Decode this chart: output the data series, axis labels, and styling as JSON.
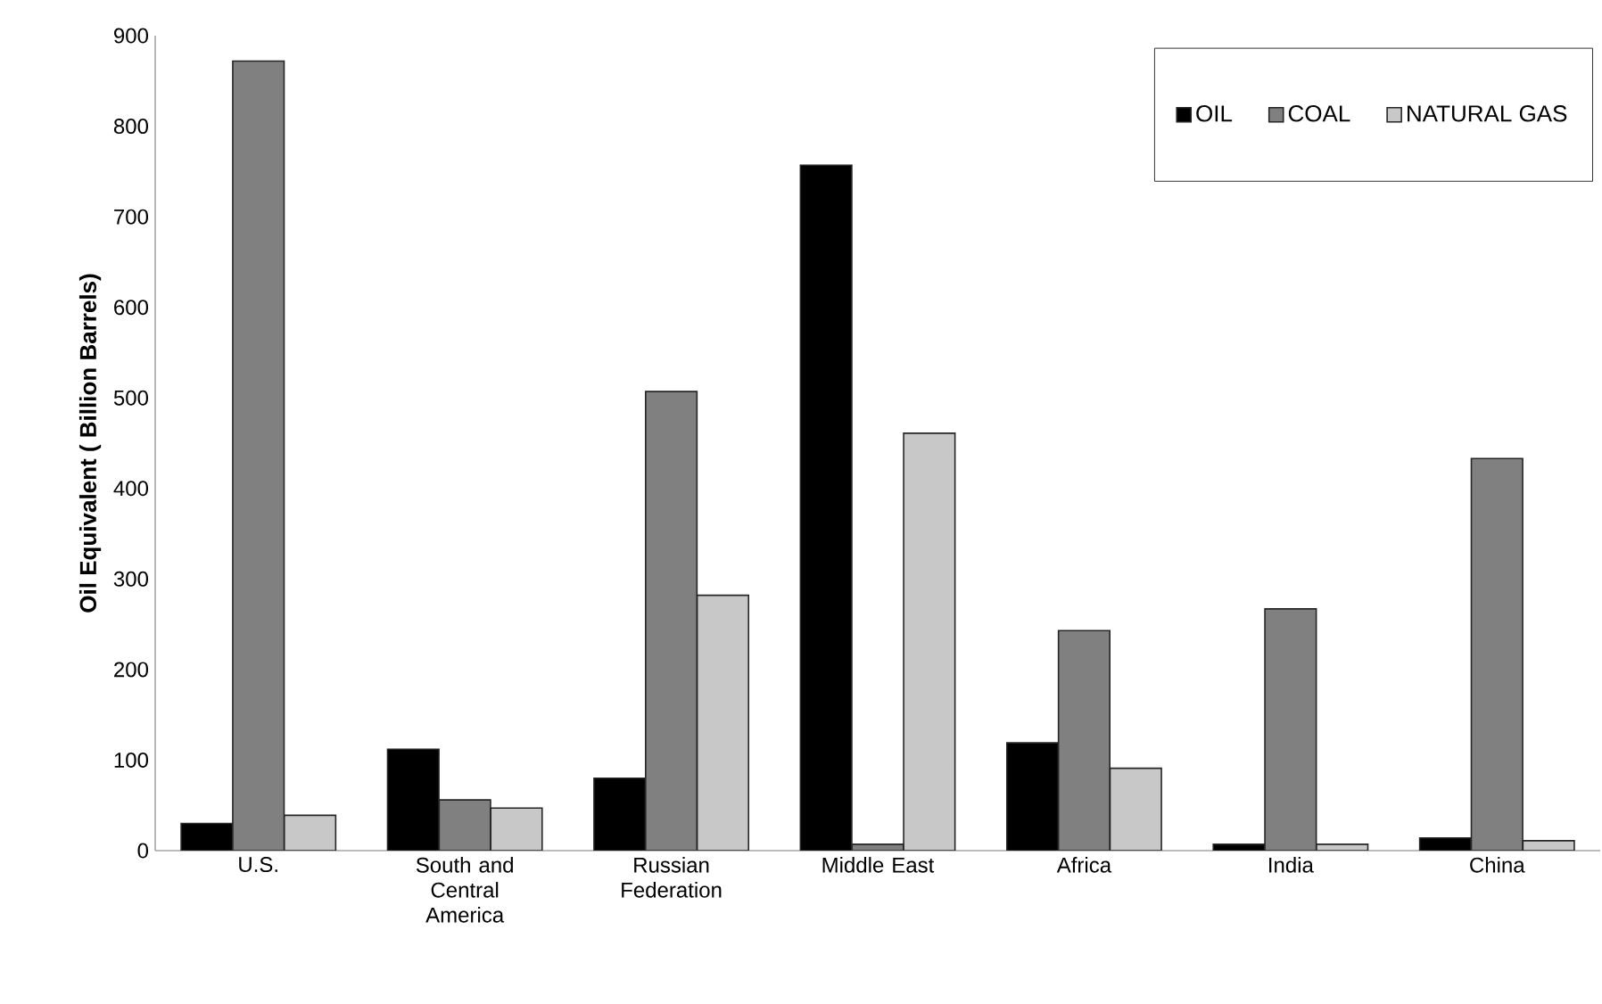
{
  "chart_data": {
    "type": "bar",
    "ylabel": "Oil Equivalent ( Billion Barrels)",
    "categories": [
      "U.S.",
      "South and Central America",
      "Russian Federation",
      "Middle East",
      "Africa",
      "India",
      "China"
    ],
    "series": [
      {
        "name": "OIL",
        "color": "#000000",
        "values": [
          30,
          112,
          80,
          757,
          119,
          7,
          14
        ]
      },
      {
        "name": "COAL",
        "color": "#808080",
        "values": [
          872,
          56,
          507,
          7,
          243,
          267,
          433
        ]
      },
      {
        "name": "NATURAL GAS",
        "color": "#c8c8c8",
        "values": [
          39,
          47,
          282,
          461,
          91,
          7,
          11
        ]
      }
    ],
    "ylim": [
      0,
      900
    ],
    "yticks": [
      0,
      100,
      200,
      300,
      400,
      500,
      600,
      700,
      800,
      900
    ],
    "grid": false,
    "legend": "top right"
  }
}
